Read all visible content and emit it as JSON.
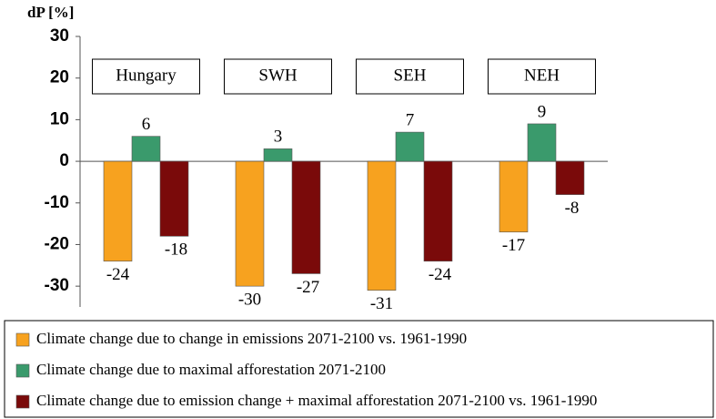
{
  "chart_data": {
    "type": "bar",
    "y_label": "dP [%]",
    "categories": [
      "Hungary",
      "SWH",
      "SEH",
      "NEH"
    ],
    "series": [
      {
        "name": "Climate change due to change in emissions 2071-2100 vs. 1961-1990",
        "color": "#f7a21f",
        "values": [
          -24,
          -30,
          -31,
          -17
        ]
      },
      {
        "name": "Climate change due to maximal afforestation 2071-2100",
        "color": "#3a9a6c",
        "values": [
          6,
          3,
          7,
          9
        ]
      },
      {
        "name": "Climate change due to emission change + maximal afforestation 2071-2100 vs. 1961-1990",
        "color": "#7a0a0a",
        "values": [
          -18,
          -27,
          -24,
          -8
        ]
      }
    ],
    "ylim": [
      -35,
      30
    ],
    "yticks": [
      -30,
      -20,
      -10,
      0,
      10,
      20,
      30
    ]
  }
}
